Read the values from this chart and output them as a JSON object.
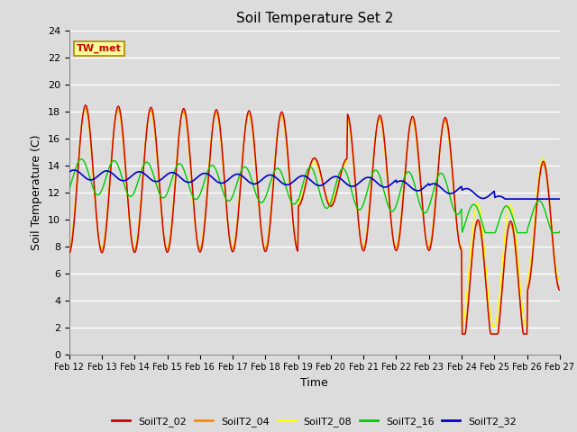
{
  "title": "Soil Temperature Set 2",
  "xlabel": "Time",
  "ylabel": "Soil Temperature (C)",
  "ylim": [
    0,
    24
  ],
  "yticks": [
    0,
    2,
    4,
    6,
    8,
    10,
    12,
    14,
    16,
    18,
    20,
    22,
    24
  ],
  "date_labels": [
    "Feb 12",
    "Feb 13",
    "Feb 14",
    "Feb 15",
    "Feb 16",
    "Feb 17",
    "Feb 18",
    "Feb 19",
    "Feb 20",
    "Feb 21",
    "Feb 22",
    "Feb 23",
    "Feb 24",
    "Feb 25",
    "Feb 26",
    "Feb 27"
  ],
  "background_color": "#dcdcdc",
  "plot_bg_color": "#dcdcdc",
  "grid_color": "#ffffff",
  "series": {
    "SoilT2_02": {
      "color": "#cc0000",
      "lw": 1.0
    },
    "SoilT2_04": {
      "color": "#ff8800",
      "lw": 1.0
    },
    "SoilT2_08": {
      "color": "#ffff00",
      "lw": 1.0
    },
    "SoilT2_16": {
      "color": "#00cc00",
      "lw": 1.0
    },
    "SoilT2_32": {
      "color": "#0000cc",
      "lw": 1.2
    }
  },
  "annotation_text": "TW_met",
  "annotation_color": "#cc0000",
  "annotation_bg": "#ffff99",
  "annotation_border": "#aa8800"
}
